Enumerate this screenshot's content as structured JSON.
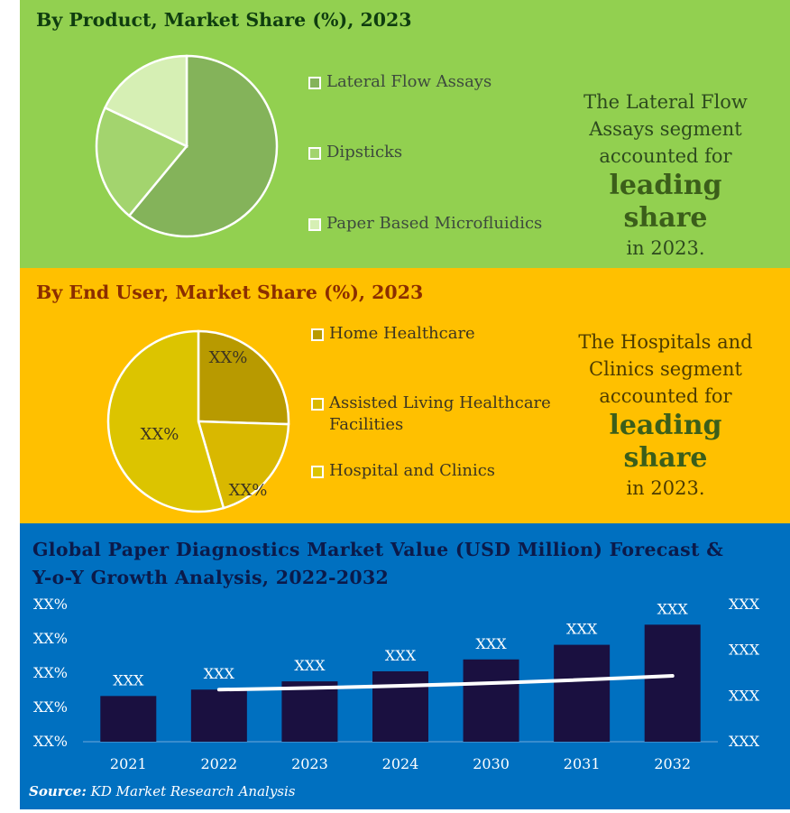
{
  "product": {
    "title": "By Product, Market Share (%), 2023",
    "legend": [
      "Lateral Flow Assays",
      "Dipsticks",
      "Paper Based Microfluidics"
    ],
    "callout_pre": "The Lateral Flow Assays segment accounted for",
    "callout_big": "leading share",
    "callout_post": "in 2023.",
    "colors": {
      "slice_0": "#84b35a",
      "slice_1": "#a3d46e",
      "slice_2": "#d6efb4",
      "border": "#ffffff"
    }
  },
  "end_user": {
    "title": "By End User, Market Share (%), 2023",
    "legend": [
      "Home Healthcare",
      "Assisted Living Healthcare Facilities",
      "Hospital and Clinics"
    ],
    "callout_pre": "The Hospitals and Clinics segment accounted for",
    "callout_big": "leading share",
    "callout_post": "in 2023.",
    "colors": {
      "slice_0": "#b89a00",
      "slice_1": "#d9b800",
      "slice_2": "#dcc400",
      "border": "#ffffff"
    }
  },
  "forecast": {
    "title": "Global  Paper Diagnostics Market Value (USD Million) Forecast & Y-o-Y Growth Analysis, 2022-2032",
    "source_label": "Source:",
    "source_text": "KD Market Research Analysis",
    "colors": {
      "bar": "#1a1040",
      "line": "#ffffff",
      "text": "#ffffff"
    }
  },
  "chart_data": [
    {
      "type": "pie",
      "title": "By Product, Market Share (%), 2023",
      "labels": [
        "Lateral Flow Assays",
        "Dipsticks",
        "Paper Based Microfluidics"
      ],
      "values": [
        61,
        21,
        18
      ]
    },
    {
      "type": "pie",
      "title": "By End User, Market Share (%), 2023",
      "labels": [
        "Home Healthcare",
        "Assisted Living Healthcare Facilities",
        "Hospital and Clinics"
      ],
      "values": [
        25.5,
        20,
        54.5
      ],
      "data_labels": [
        "XX%",
        "XX%",
        "XX%"
      ]
    },
    {
      "type": "bar",
      "title": "Global  Paper Diagnostics Market Value (USD Million) Forecast & Y-o-Y Growth Analysis, 2022-2032",
      "categories": [
        "2021",
        "2022",
        "2023",
        "2024",
        "2030",
        "2031",
        "2032"
      ],
      "series": [
        {
          "values": [
            50,
            57,
            66,
            77,
            90,
            106,
            128
          ],
          "data_labels": [
            "XXX",
            "XXX",
            "XXX",
            "XXX",
            "XXX",
            "XXX",
            "XXX"
          ]
        },
        {
          "type": "line",
          "x": [
            "2022",
            "2032"
          ],
          "values": [
            0.38,
            0.48
          ]
        }
      ],
      "ylim": [
        0,
        150
      ],
      "y2lim": [
        0,
        1
      ],
      "left_axis_ticks": [
        "XX%",
        "XX%",
        "XX%",
        "XX%",
        "XX%"
      ],
      "right_axis_ticks": [
        "XXX",
        "XXX",
        "XXX",
        "XXX"
      ],
      "grid": false
    }
  ]
}
